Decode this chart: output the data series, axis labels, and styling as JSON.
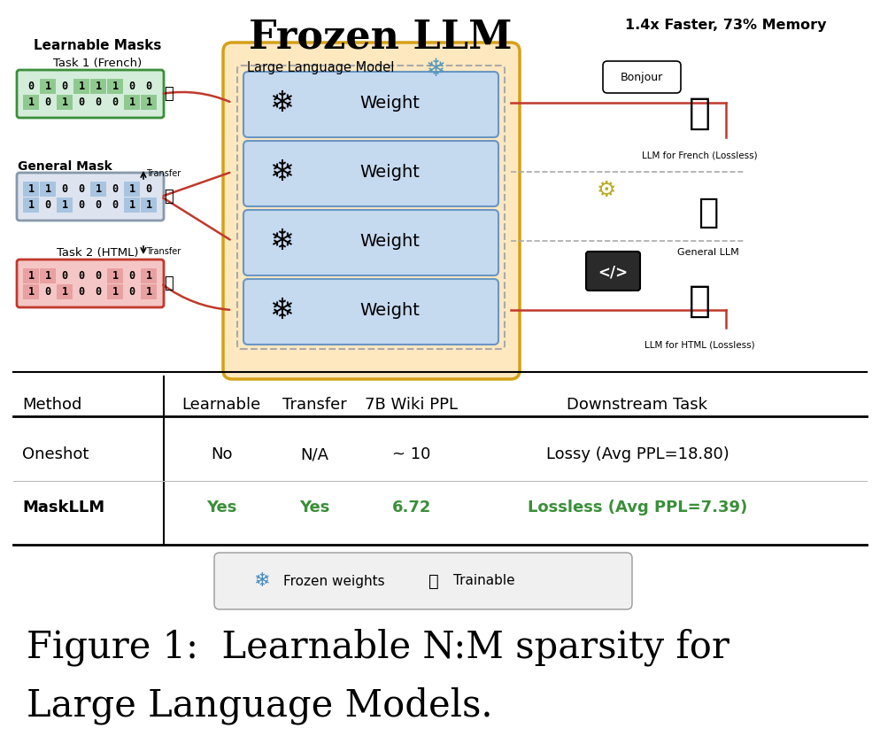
{
  "title_frozen": "Frozen LLM",
  "title_speed": "1.4x Faster, 73% Memory",
  "label_learnable_masks": "Learnable Masks",
  "label_task1": "Task 1 (French)",
  "label_task2": "Task 2 (HTML)",
  "label_general_mask": "General Mask",
  "label_llm": "Large Language Model",
  "label_weight": "Weight",
  "label_french_llm": "LLM for French (Lossless)",
  "label_general_llm": "General LLM",
  "label_html_llm": "LLM for HTML (Lossless)",
  "label_bonjour": "Bonjour",
  "label_frozen": "Frozen weights",
  "label_trainable": "Trainable",
  "mask1_row1": [
    0,
    1,
    0,
    1,
    1,
    1,
    0,
    0
  ],
  "mask1_row2": [
    1,
    0,
    1,
    0,
    0,
    0,
    1,
    1
  ],
  "mask_gen_row1": [
    1,
    1,
    0,
    0,
    1,
    0,
    1,
    0
  ],
  "mask_gen_row2": [
    1,
    0,
    1,
    0,
    0,
    0,
    1,
    1
  ],
  "mask2_row1": [
    1,
    1,
    0,
    0,
    0,
    1,
    0,
    1
  ],
  "mask2_row2": [
    1,
    0,
    1,
    0,
    0,
    1,
    0,
    1
  ],
  "color_green": "#3a8f3a",
  "color_green_light": "#d4edda",
  "color_green_cell": "#90c990",
  "color_blue_light": "#c5d9ef",
  "color_blue_cell": "#a8c4e0",
  "color_red_light": "#f5c6c6",
  "color_red_cell": "#e8a0a0",
  "color_orange_bg": "#fde8c0",
  "color_orange_border": "#d4a017",
  "color_gray_robot": "#8899aa",
  "color_brown_robot": "#7a3b1e",
  "figure_caption_line1": "Figure 1:  Learnable N:M sparsity for",
  "figure_caption_line2": "Large Language Models."
}
